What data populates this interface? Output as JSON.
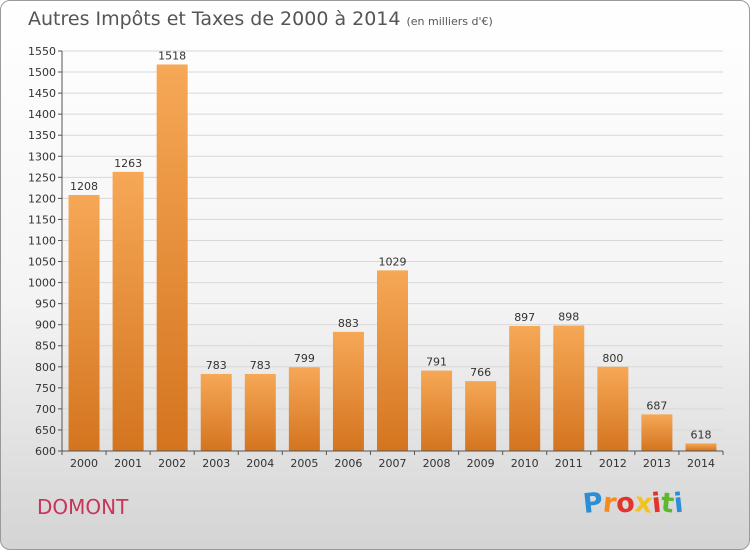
{
  "title": "Autres Impôts et Taxes de 2000 à 2014",
  "unit_label": "(en milliers d'€)",
  "place_name": "DOMONT",
  "logo": {
    "letters": [
      "P",
      "r",
      "o",
      "x",
      "i",
      "t",
      "i"
    ],
    "colors": [
      "#2a8fd8",
      "#f28c1e",
      "#e2342a",
      "#f2c21e",
      "#e2342a",
      "#5cb82e",
      "#2a8fd8"
    ]
  },
  "colors": {
    "bar_top": "#f6a856",
    "bar_bottom": "#d4741f",
    "axis": "#555555",
    "grid": "#d8d8d8"
  },
  "chart_data": {
    "type": "bar",
    "categories": [
      "2000",
      "2001",
      "2002",
      "2003",
      "2004",
      "2005",
      "2006",
      "2007",
      "2008",
      "2009",
      "2010",
      "2011",
      "2012",
      "2013",
      "2014"
    ],
    "values": [
      1208,
      1263,
      1518,
      783,
      783,
      799,
      883,
      1029,
      791,
      766,
      897,
      898,
      800,
      687,
      618
    ],
    "data_labels": [
      "1208",
      "1263",
      "1518",
      "783",
      "783",
      "799",
      "883",
      "1029",
      "791",
      "766",
      "897",
      "898",
      "800",
      "687",
      "618"
    ],
    "yticks": [
      "600",
      "650",
      "700",
      "750",
      "800",
      "850",
      "900",
      "950",
      "1000",
      "1050",
      "1100",
      "1150",
      "1200",
      "1250",
      "1300",
      "1350",
      "1400",
      "1450",
      "1500",
      "1550"
    ],
    "ylim": [
      600,
      1550
    ],
    "grid": true,
    "legend": "none"
  }
}
